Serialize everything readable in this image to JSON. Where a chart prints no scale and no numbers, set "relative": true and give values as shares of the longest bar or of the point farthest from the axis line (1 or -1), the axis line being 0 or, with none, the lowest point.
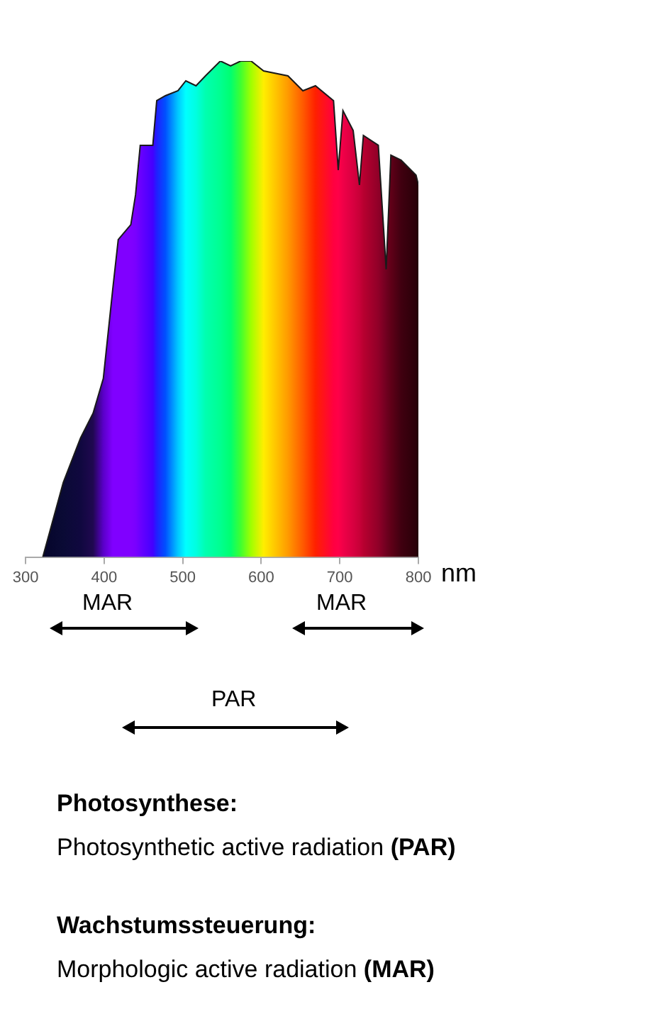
{
  "chart_data": {
    "type": "area",
    "relative": true,
    "xlabel": "nm",
    "xlim": [
      300,
      800
    ],
    "xticks": [
      300,
      400,
      500,
      600,
      700,
      800
    ],
    "x": [
      322,
      348,
      370,
      386,
      399,
      411,
      418,
      434,
      440,
      446,
      462,
      467,
      478,
      494,
      504,
      517,
      529,
      548,
      561,
      574,
      587,
      603,
      634,
      653,
      669,
      692,
      698,
      704,
      717,
      725,
      730,
      749,
      759,
      765,
      778,
      797,
      800
    ],
    "series": [
      {
        "color": "#1a1a1a",
        "values": [
          0,
          0.15,
          0.24,
          0.29,
          0.36,
          0.54,
          0.64,
          0.67,
          0.73,
          0.83,
          0.83,
          0.92,
          0.93,
          0.94,
          0.96,
          0.95,
          0.97,
          1,
          0.99,
          1,
          1,
          0.98,
          0.97,
          0.94,
          0.95,
          0.92,
          0.78,
          0.9,
          0.86,
          0.75,
          0.85,
          0.83,
          0.58,
          0.81,
          0.8,
          0.77,
          0.75
        ],
        "colors": [
          "#05052a",
          "#0a0a35",
          "#10083f",
          "#200850",
          "#5a00c8",
          "#8000ff",
          "#8000ff",
          "#8000ff",
          "#7a00ff",
          "#6a00ff",
          "#4400ff",
          "#2020ff",
          "#0050ff",
          "#00c8ff",
          "#00ffff",
          "#00ffe0",
          "#00ffb0",
          "#00ff90",
          "#00ff70",
          "#40ff30",
          "#a0ff00",
          "#ffee00",
          "#ff9a00",
          "#ff5a00",
          "#ff2000",
          "#ff0040",
          "#ff0048",
          "#f00048",
          "#d80040",
          "#c80038",
          "#b80030",
          "#900028",
          "#700020",
          "#600018",
          "#400010",
          "#2a0008",
          "#200005"
        ]
      }
    ],
    "annotations": [
      "MAR",
      "MAR",
      "PAR",
      "Photosynthese:",
      "Photosynthetic active radiation (PAR)",
      "Wachstumssteuerung:",
      "Morphologic active radiation (MAR)"
    ]
  }
}
